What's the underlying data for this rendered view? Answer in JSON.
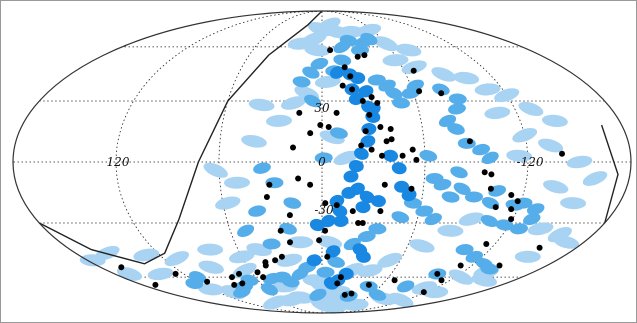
{
  "chart_data": {
    "type": "scatter",
    "projection": "mollweide",
    "title": "",
    "xlabel": "",
    "ylabel": "",
    "lon_ticks": [
      "120",
      "0",
      "-120"
    ],
    "lat_ticks": [
      "30",
      "-30"
    ],
    "grid": true,
    "colors": {
      "light_blue": "#a9d3f2",
      "mid_blue": "#55aeea",
      "dark_blue": "#1888e2",
      "points": "#000000",
      "grid": "#222222"
    },
    "series": [
      {
        "style": "points",
        "lonlat": [
          [
            -7,
            58
          ],
          [
            -17,
            48
          ],
          [
            -20,
            43
          ],
          [
            -29,
            54
          ],
          [
            -35,
            55
          ],
          [
            -14,
            38
          ],
          [
            -20,
            36
          ],
          [
            -26,
            30
          ],
          [
            -32,
            32
          ],
          [
            -35,
            29
          ],
          [
            -29,
            23
          ],
          [
            -26,
            15
          ],
          [
            -35,
            17
          ],
          [
            -38,
            10
          ],
          [
            -41,
            11
          ],
          [
            -41,
            16
          ],
          [
            -23,
            8
          ],
          [
            -29,
            6
          ],
          [
            -35,
            3
          ],
          [
            -47,
            3
          ],
          [
            -53,
            6
          ],
          [
            -67,
            46
          ],
          [
            -64,
            35
          ],
          [
            -78,
            34
          ],
          [
            -87,
            10
          ],
          [
            -95,
            -5
          ],
          [
            -99,
            -6
          ],
          [
            -100,
            -13
          ],
          [
            -113,
            -16
          ],
          [
            -116,
            -23
          ],
          [
            -119,
            -28
          ],
          [
            -106,
            -22
          ],
          [
            -118,
            -19
          ],
          [
            -140,
            4
          ],
          [
            -55,
            1
          ],
          [
            1,
            18
          ],
          [
            -4,
            17
          ],
          [
            -9,
            24
          ],
          [
            14,
            24
          ],
          [
            17,
            7
          ],
          [
            7,
            14
          ],
          [
            14,
            -8
          ],
          [
            7,
            -11
          ],
          [
            -2,
            -20
          ],
          [
            -9,
            -21
          ],
          [
            -19,
            -24
          ],
          [
            -23,
            -30
          ],
          [
            -26,
            -30
          ],
          [
            -36,
            -24
          ],
          [
            -37,
            -11
          ],
          [
            -53,
            -13
          ],
          [
            -2,
            -34
          ],
          [
            2,
            -39
          ],
          [
            31,
            -11
          ],
          [
            33,
            -17
          ],
          [
            20,
            -26
          ],
          [
            27,
            -34
          ],
          [
            22,
            -40
          ],
          [
            30,
            -48
          ],
          [
            36,
            -50
          ],
          [
            44,
            -51
          ],
          [
            45,
            -53
          ],
          [
            55,
            -57
          ],
          [
            53,
            -60
          ],
          [
            72,
            -58
          ],
          [
            81,
            -60
          ],
          [
            78,
            -64
          ],
          [
            88,
            -65
          ],
          [
            110,
            -63
          ],
          [
            127,
            -58
          ],
          [
            -4,
            -48
          ],
          [
            -15,
            -64
          ],
          [
            -17,
            -60
          ],
          [
            -28,
            -72
          ],
          [
            -35,
            -71
          ],
          [
            -47,
            -65
          ],
          [
            -68,
            -62
          ],
          [
            -100,
            -58
          ],
          [
            -111,
            -53
          ],
          [
            -112,
            -62
          ],
          [
            -117,
            -70
          ],
          [
            163,
            -54
          ],
          [
            167,
            -65
          ],
          [
            -154,
            -43
          ],
          [
            -142,
            -53
          ],
          [
            -114,
            -41
          ]
        ]
      },
      {
        "style": "dark_blue",
        "lonlat": [
          [
            -11,
            45
          ],
          [
            -20,
            44
          ],
          [
            -25,
            42
          ],
          [
            -29,
            35
          ],
          [
            -29,
            27
          ],
          [
            -31,
            22
          ],
          [
            -28,
            16
          ],
          [
            -27,
            10
          ],
          [
            -23,
            4
          ],
          [
            -20,
            -2
          ],
          [
            -17,
            -7
          ],
          [
            -21,
            -13
          ],
          [
            -27,
            -17
          ],
          [
            -34,
            -19
          ],
          [
            -16,
            -15
          ],
          [
            -9,
            -19
          ],
          [
            -11,
            -24
          ],
          [
            -25,
            -22
          ],
          [
            -12,
            -29
          ],
          [
            -4,
            -29
          ],
          [
            3,
            -31
          ],
          [
            -20,
            36
          ],
          [
            -22,
            31
          ],
          [
            -32,
            26
          ],
          [
            -45,
            -3
          ],
          [
            -47,
            -12
          ],
          [
            -52,
            -16
          ],
          [
            -27,
            -44
          ],
          [
            -31,
            -48
          ],
          [
            -21,
            -58
          ],
          [
            -15,
            -62
          ],
          [
            -9,
            -64
          ],
          [
            -40,
            3
          ],
          [
            6,
            -50
          ],
          [
            -8,
            -45
          ]
        ]
      },
      {
        "style": "mid_blue",
        "lonlat": [
          [
            -18,
            60
          ],
          [
            -26,
            64
          ],
          [
            -33,
            58
          ],
          [
            -40,
            63
          ],
          [
            -47,
            65
          ],
          [
            -16,
            52
          ],
          [
            -9,
            46
          ],
          [
            2,
            50
          ],
          [
            8,
            45
          ],
          [
            14,
            40
          ],
          [
            -38,
            41
          ],
          [
            -44,
            38
          ],
          [
            -47,
            34
          ],
          [
            -50,
            29
          ],
          [
            -58,
            34
          ],
          [
            -63,
            38
          ],
          [
            -79,
            36
          ],
          [
            -87,
            31
          ],
          [
            -84,
            26
          ],
          [
            -76,
            20
          ],
          [
            -80,
            16
          ],
          [
            -85,
            9
          ],
          [
            -93,
            6
          ],
          [
            -98,
            2
          ],
          [
            -62,
            3
          ],
          [
            -66,
            -8
          ],
          [
            -71,
            -11
          ],
          [
            -83,
            -13
          ],
          [
            -77,
            -17
          ],
          [
            -91,
            -17
          ],
          [
            -104,
            -14
          ],
          [
            -102,
            -20
          ],
          [
            -117,
            -21
          ],
          [
            -122,
            -20
          ],
          [
            -131,
            -23
          ],
          [
            -106,
            -29
          ],
          [
            -117,
            -31
          ],
          [
            -128,
            -33
          ],
          [
            -132,
            -28
          ],
          [
            -80,
            -5
          ],
          [
            -55,
            -20
          ],
          [
            -63,
            -24
          ],
          [
            -70,
            -28
          ],
          [
            -49,
            -27
          ],
          [
            -36,
            -33
          ],
          [
            -30,
            -37
          ],
          [
            -21,
            -41
          ],
          [
            -11,
            -51
          ],
          [
            -3,
            -57
          ],
          [
            12,
            -54
          ],
          [
            19,
            -58
          ],
          [
            30,
            -63
          ],
          [
            36,
            -60
          ],
          [
            46,
            -61
          ],
          [
            57,
            -68
          ],
          [
            68,
            -62
          ],
          [
            80,
            -66
          ],
          [
            92,
            -70
          ],
          [
            112,
            -60
          ],
          [
            125,
            -64
          ],
          [
            -102,
            -44
          ],
          [
            -114,
            -48
          ],
          [
            -128,
            -52
          ],
          [
            -138,
            -55
          ],
          [
            -100,
            -58
          ],
          [
            -86,
            -66
          ],
          [
            -68,
            -72
          ],
          [
            -48,
            -66
          ],
          [
            -34,
            -73
          ],
          [
            5,
            -72
          ],
          [
            22,
            -33
          ],
          [
            35,
            -41
          ],
          [
            40,
            -24
          ],
          [
            50,
            -34
          ],
          [
            18,
            -20
          ],
          [
            28,
            -10
          ],
          [
            35,
            -3
          ],
          [
            6,
            30
          ],
          [
            -10,
            14
          ],
          [
            -1,
            2
          ]
        ]
      },
      {
        "style": "light_blue",
        "lonlat": [
          [
            -9,
            75
          ],
          [
            -17,
            70
          ],
          [
            -33,
            70
          ],
          [
            -55,
            71
          ],
          [
            -60,
            62
          ],
          [
            -75,
            58
          ],
          [
            -58,
            52
          ],
          [
            -69,
            48
          ],
          [
            -87,
            44
          ],
          [
            -101,
            42
          ],
          [
            -110,
            36
          ],
          [
            -120,
            33
          ],
          [
            -130,
            26
          ],
          [
            -141,
            20
          ],
          [
            -108,
            24
          ],
          [
            -120,
            13
          ],
          [
            -134,
            8
          ],
          [
            -115,
            3
          ],
          [
            -150,
            0
          ],
          [
            -160,
            -8
          ],
          [
            -138,
            -12
          ],
          [
            -152,
            -20
          ],
          [
            -142,
            -33
          ],
          [
            -158,
            -36
          ],
          [
            -168,
            -40
          ],
          [
            -154,
            -48
          ],
          [
            -140,
            -57
          ],
          [
            -125,
            -60
          ],
          [
            -152,
            -62
          ],
          [
            -130,
            -70
          ],
          [
            -108,
            -67
          ],
          [
            -114,
            -76
          ],
          [
            -86,
            -75
          ],
          [
            -60,
            -80
          ],
          [
            -33,
            -82
          ],
          [
            -2,
            -80
          ],
          [
            28,
            -74
          ],
          [
            45,
            -76
          ],
          [
            74,
            -78
          ],
          [
            102,
            -70
          ],
          [
            120,
            -68
          ],
          [
            140,
            -58
          ],
          [
            157,
            -46
          ],
          [
            167,
            -58
          ],
          [
            176,
            -50
          ],
          [
            130,
            -47
          ],
          [
            110,
            -49
          ],
          [
            90,
            -54
          ],
          [
            80,
            -44
          ],
          [
            60,
            -48
          ],
          [
            65,
            -56
          ],
          [
            45,
            -44
          ],
          [
            50,
            -10
          ],
          [
            57,
            -20
          ],
          [
            62,
            -4
          ],
          [
            40,
            10
          ],
          [
            26,
            20
          ],
          [
            18,
            29
          ],
          [
            10,
            34
          ],
          [
            38,
            28
          ],
          [
            20,
            62
          ],
          [
            8,
            65
          ],
          [
            2,
            72
          ],
          [
            4,
            58
          ],
          [
            -4,
            40
          ],
          [
            -14,
            2
          ],
          [
            -6,
            12
          ],
          [
            6,
            -62
          ],
          [
            -18,
            -70
          ],
          [
            -52,
            -50
          ],
          [
            -70,
            -42
          ],
          [
            -84,
            -34
          ],
          [
            -40,
            -56
          ],
          [
            -25,
            -56
          ],
          [
            -5,
            -40
          ],
          [
            15,
            -40
          ],
          [
            25,
            -50
          ],
          [
            0,
            -66
          ],
          [
            -12,
            -76
          ],
          [
            38,
            -66
          ],
          [
            -94,
            -28
          ]
        ]
      }
    ]
  }
}
